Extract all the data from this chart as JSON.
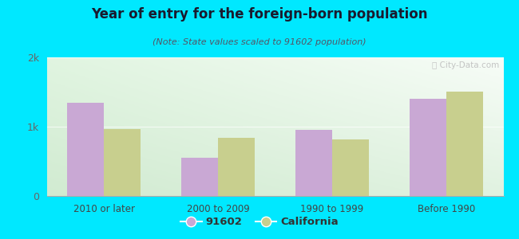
{
  "title": "Year of entry for the foreign-born population",
  "subtitle": "(Note: State values scaled to 91602 population)",
  "categories": [
    "2010 or later",
    "2000 to 2009",
    "1990 to 1999",
    "Before 1990"
  ],
  "values_91602": [
    1350,
    550,
    950,
    1400
  ],
  "values_california": [
    960,
    840,
    820,
    1510
  ],
  "color_91602": "#c9a8d4",
  "color_california": "#c8cf8e",
  "background_outer": "#00e8ff",
  "ylim": [
    0,
    2000
  ],
  "yticks": [
    0,
    1000,
    2000
  ],
  "ytick_labels": [
    "0",
    "1k",
    "2k"
  ],
  "legend_label_91602": "91602",
  "legend_label_california": "California",
  "bar_width": 0.32
}
